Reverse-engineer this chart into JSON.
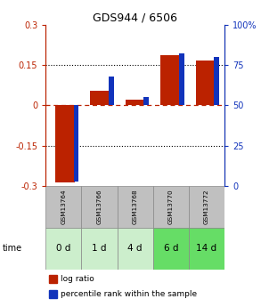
{
  "title": "GDS944 / 6506",
  "categories": [
    "GSM13764",
    "GSM13766",
    "GSM13768",
    "GSM13770",
    "GSM13772"
  ],
  "time_labels": [
    "0 d",
    "1 d",
    "4 d",
    "6 d",
    "14 d"
  ],
  "log_ratio": [
    -0.285,
    0.055,
    0.02,
    0.185,
    0.168
  ],
  "percentile_rank": [
    3,
    68,
    55,
    82,
    80
  ],
  "ylim_left": [
    -0.3,
    0.3
  ],
  "ylim_right": [
    0,
    100
  ],
  "left_ticks": [
    -0.3,
    -0.15,
    0,
    0.15,
    0.3
  ],
  "right_ticks": [
    0,
    25,
    50,
    75,
    100
  ],
  "bar_color_red": "#BB2200",
  "bar_color_blue": "#1133BB",
  "dotted_line_color": "#000000",
  "zero_line_color": "#BB2200",
  "header_bg": "#C0C0C0",
  "time_bg_colors": [
    "#CCEECC",
    "#CCEECC",
    "#CCEECC",
    "#66DD66",
    "#66DD66"
  ],
  "legend_red_label": "log ratio",
  "legend_blue_label": "percentile rank within the sample",
  "left_axis_color": "#BB2200",
  "right_axis_color": "#1133BB"
}
